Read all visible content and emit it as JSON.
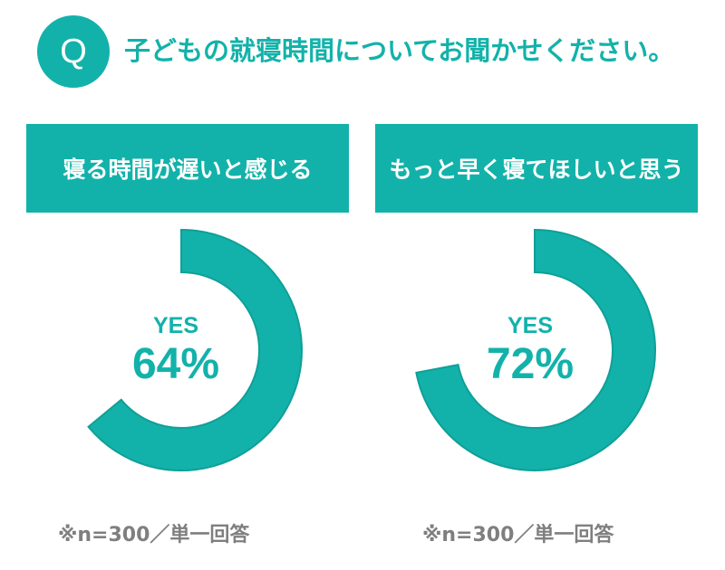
{
  "question": {
    "badge": "Q",
    "text": "子どもの就寝時間についてお聞かせください。"
  },
  "colors": {
    "accent": "#12b2aa",
    "donut_fill": "#12b2aa",
    "donut_stroke": "#0f9f98",
    "note_text": "#7f7f7f"
  },
  "chart_data": [
    {
      "type": "pie",
      "title": "寝る時間が遅いと感じる",
      "categories": [
        "YES"
      ],
      "values": [
        64
      ],
      "center_label": "YES",
      "value_label": "64%",
      "note": "※n=300／単一回答"
    },
    {
      "type": "pie",
      "title": "もっと早く寝てほしいと思う",
      "categories": [
        "YES"
      ],
      "values": [
        72
      ],
      "center_label": "YES",
      "value_label": "72%",
      "note": "※n=300／単一回答"
    }
  ]
}
